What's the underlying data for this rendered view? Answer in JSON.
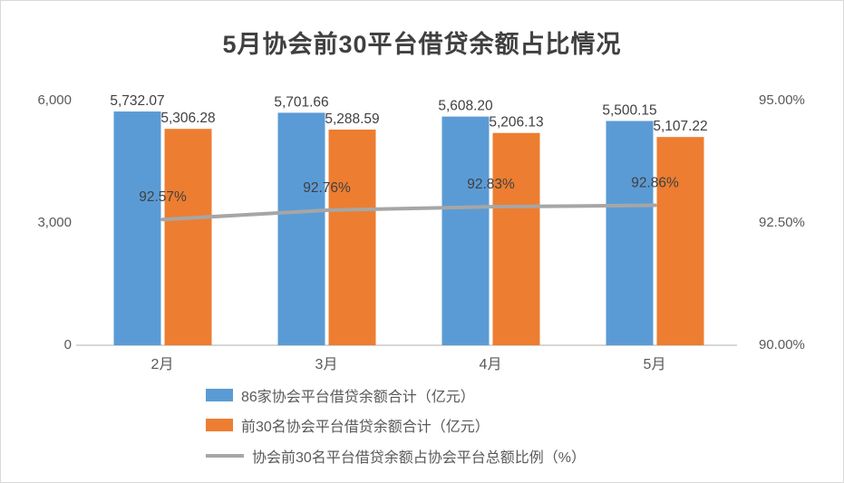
{
  "chart_data": {
    "type": "combo",
    "title": "5月协会前30平台借贷余额占比情况",
    "categories": [
      "2月",
      "3月",
      "4月",
      "5月"
    ],
    "series": [
      {
        "name": "86家协会平台借贷余额合计（亿元）",
        "type": "bar",
        "axis": "left",
        "color": "#5B9BD5",
        "values": [
          5732.07,
          5701.66,
          5608.2,
          5500.15
        ],
        "labels": [
          "5,732.07",
          "5,701.66",
          "5,608.20",
          "5,500.15"
        ]
      },
      {
        "name": "前30名协会平台借贷余额合计（亿元）",
        "type": "bar",
        "axis": "left",
        "color": "#ED7D31",
        "values": [
          5306.28,
          5288.59,
          5206.13,
          5107.22
        ],
        "labels": [
          "5,306.28",
          "5,288.59",
          "5,206.13",
          "5,107.22"
        ]
      },
      {
        "name": "协会前30名平台借贷余额占协会平台总额比例（%）",
        "type": "line",
        "axis": "right",
        "color": "#A6A6A6",
        "values": [
          92.57,
          92.76,
          92.83,
          92.86
        ],
        "labels": [
          "92.57%",
          "92.76%",
          "92.83%",
          "92.86%"
        ]
      }
    ],
    "left_axis": {
      "min": 0,
      "max": 6000,
      "tick_labels": [
        "6,000",
        "3,000",
        "0"
      ],
      "tick_values": [
        6000,
        3000,
        0
      ]
    },
    "right_axis": {
      "min": 90,
      "max": 95,
      "tick_labels": [
        "95.00%",
        "92.50%",
        "90.00%"
      ],
      "tick_values": [
        95,
        92.5,
        90
      ]
    },
    "grid": false,
    "legend_position": "bottom-left",
    "colors": {
      "bar_blue": "#5B9BD5",
      "bar_orange": "#ED7D31",
      "line_gray": "#A6A6A6",
      "axis_line": "#BFBFBF",
      "tick_text": "#595959",
      "title_text": "#404040"
    }
  }
}
